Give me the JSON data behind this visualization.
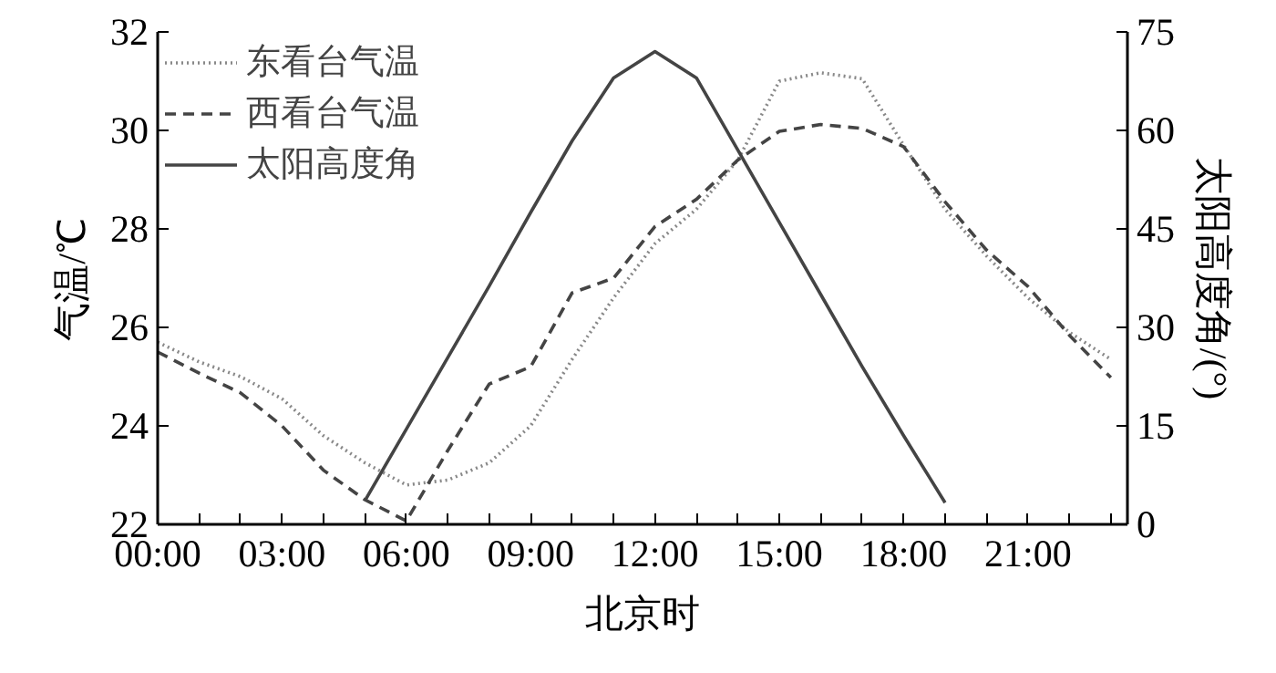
{
  "chart_data": {
    "type": "line",
    "xlabel": "北京时",
    "ylabel": "气温/℃",
    "y2label": "太阳高度角/(°)",
    "xlim": [
      0,
      23.4
    ],
    "xticks": [
      {
        "value": 0,
        "label": "00:00"
      },
      {
        "value": 1,
        "label": null
      },
      {
        "value": 2,
        "label": null
      },
      {
        "value": 3,
        "label": "03:00"
      },
      {
        "value": 4,
        "label": null
      },
      {
        "value": 5,
        "label": null
      },
      {
        "value": 6,
        "label": "06:00"
      },
      {
        "value": 7,
        "label": null
      },
      {
        "value": 8,
        "label": null
      },
      {
        "value": 9,
        "label": "09:00"
      },
      {
        "value": 10,
        "label": null
      },
      {
        "value": 11,
        "label": null
      },
      {
        "value": 12,
        "label": "12:00"
      },
      {
        "value": 13,
        "label": null
      },
      {
        "value": 14,
        "label": null
      },
      {
        "value": 15,
        "label": "15:00"
      },
      {
        "value": 16,
        "label": null
      },
      {
        "value": 17,
        "label": null
      },
      {
        "value": 18,
        "label": "18:00"
      },
      {
        "value": 19,
        "label": null
      },
      {
        "value": 20,
        "label": null
      },
      {
        "value": 21,
        "label": "21:00"
      },
      {
        "value": 22,
        "label": null
      },
      {
        "value": 23,
        "label": null
      }
    ],
    "ylim": [
      22,
      32
    ],
    "yticks": [
      22,
      24,
      26,
      28,
      30,
      32
    ],
    "y2lim": [
      0,
      75
    ],
    "y2ticks": [
      0,
      15,
      30,
      45,
      60,
      75
    ],
    "x": [
      0,
      1,
      2,
      3,
      4,
      5,
      6,
      7,
      8,
      9,
      10,
      11,
      12,
      13,
      14,
      15,
      16,
      17,
      18,
      19,
      20,
      21,
      22,
      23
    ],
    "series": [
      {
        "name": "东看台气温",
        "color": "#888888",
        "line_style": "dotted",
        "values": [
          25.7,
          25.3,
          25.0,
          24.55,
          23.8,
          23.25,
          22.8,
          22.9,
          23.25,
          24.0,
          25.35,
          26.6,
          27.7,
          28.4,
          29.4,
          31.0,
          31.17,
          31.05,
          29.7,
          28.4,
          27.45,
          26.6,
          25.9,
          25.35
        ]
      },
      {
        "name": "西看台气温",
        "color": "#444444",
        "line_style": "dashed",
        "values": [
          25.5,
          25.07,
          24.67,
          24.0,
          23.1,
          22.5,
          22.07,
          23.5,
          24.85,
          25.2,
          26.7,
          27.0,
          28.05,
          28.6,
          29.4,
          29.98,
          30.12,
          30.04,
          29.67,
          28.55,
          27.57,
          26.83,
          25.84,
          24.98
        ]
      },
      {
        "name": "太阳高度角",
        "color": "#444444",
        "line_style": "solid",
        "axis": "y2",
        "x": [
          5,
          6,
          7,
          8,
          9,
          10,
          11,
          12,
          13,
          14,
          15,
          16,
          17,
          18,
          19
        ],
        "values": [
          3.6,
          14.5,
          25.4,
          36.3,
          47.5,
          58.4,
          68,
          72,
          68,
          57,
          46,
          35,
          24,
          13.5,
          3.3
        ]
      }
    ],
    "legend": "top left",
    "grid": false
  }
}
